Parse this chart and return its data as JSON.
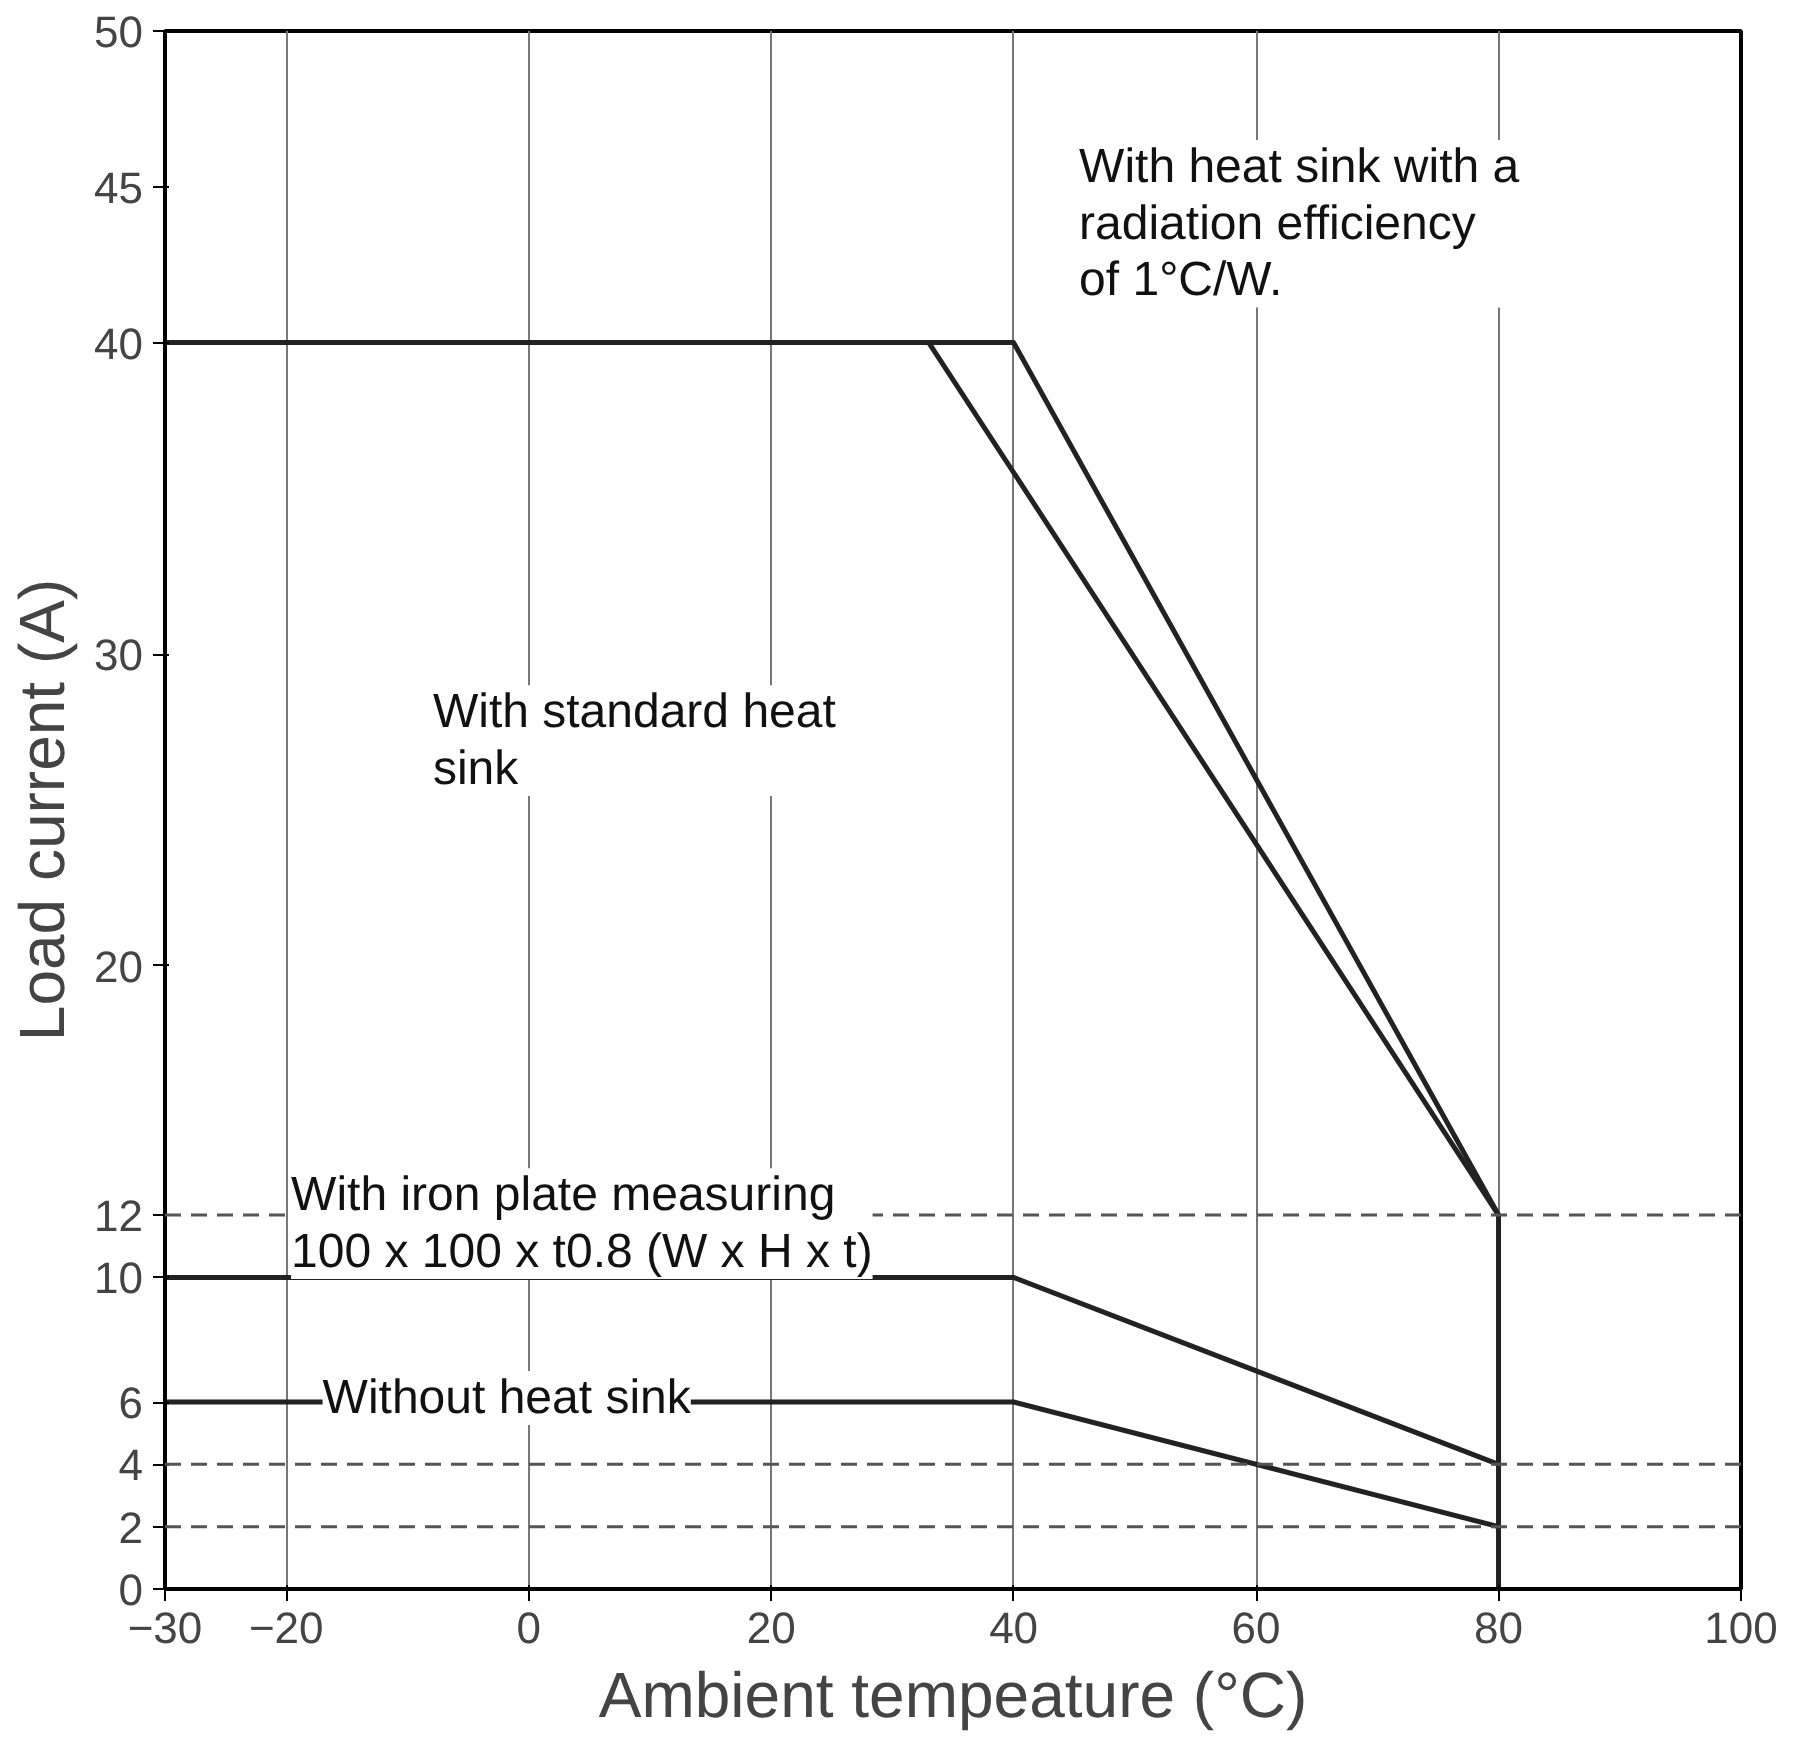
{
  "chart_data": {
    "type": "line",
    "xlabel": "Ambient tempeature (°C)",
    "ylabel": "Load current (A)",
    "xlim": [
      -30,
      100
    ],
    "ylim": [
      0,
      50
    ],
    "xticks": [
      -30,
      -20,
      0,
      20,
      40,
      60,
      80,
      100
    ],
    "yticks": [
      0,
      2,
      4,
      6,
      10,
      12,
      20,
      30,
      40,
      45,
      50
    ],
    "grid": "x",
    "marker": "none",
    "line_style": "solid",
    "series": [
      {
        "color": "#222222",
        "x": [
          -30,
          40,
          80,
          80
        ],
        "values": [
          40,
          40,
          12,
          0
        ]
      },
      {
        "color": "#222222",
        "x": [
          -30,
          33,
          80
        ],
        "values": [
          40,
          40,
          12
        ]
      },
      {
        "color": "#222222",
        "x": [
          -30,
          40,
          80
        ],
        "values": [
          10,
          10,
          4
        ]
      },
      {
        "color": "#222222",
        "x": [
          -30,
          40,
          80
        ],
        "values": [
          6,
          6,
          2
        ]
      }
    ],
    "ref_lines": [
      {
        "axis": "y",
        "value": 12,
        "line_style": "dashed",
        "color": "#555555"
      },
      {
        "axis": "y",
        "value": 4,
        "line_style": "dashed",
        "color": "#555555"
      },
      {
        "axis": "y",
        "value": 2,
        "line_style": "dashed",
        "color": "#555555"
      }
    ],
    "annotations": [
      "With heat sink with a\nradiation efficiency\nof 1°C/W.",
      "With standard heat\nsink",
      "With iron plate measuring\n100 x 100 x t0.8 (W x H x t)",
      "Without heat sink"
    ]
  }
}
